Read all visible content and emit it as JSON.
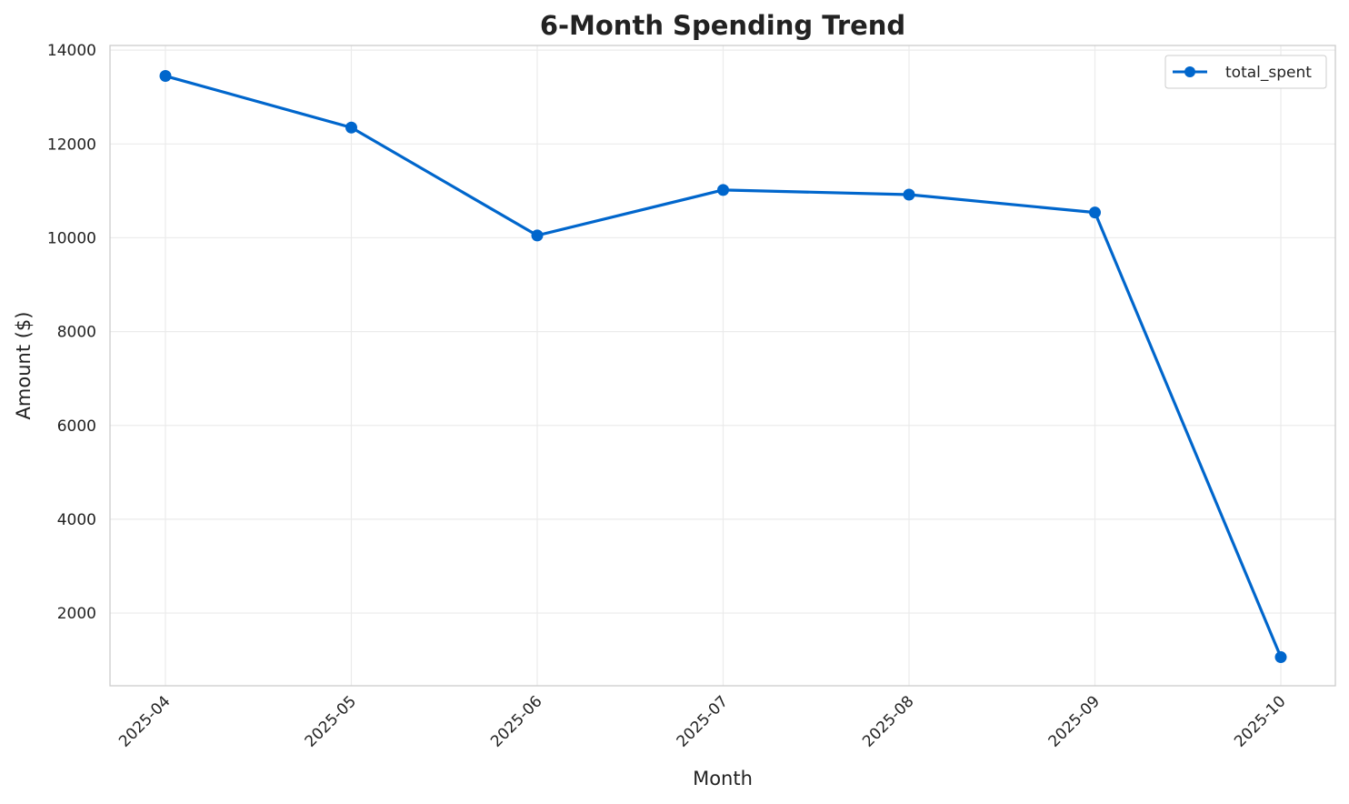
{
  "chart_data": {
    "type": "line",
    "title": "6-Month Spending Trend",
    "xlabel": "Month",
    "ylabel": "Amount ($)",
    "categories": [
      "2025-04",
      "2025-05",
      "2025-06",
      "2025-07",
      "2025-08",
      "2025-09",
      "2025-10"
    ],
    "series": [
      {
        "name": "total_spent",
        "color": "#0066cc",
        "values": [
          13450,
          12350,
          10050,
          11020,
          10920,
          10540,
          1060
        ]
      }
    ],
    "ylim": [
      450,
      14100
    ],
    "yticks": [
      2000,
      4000,
      6000,
      8000,
      10000,
      12000,
      14000
    ],
    "ytick_labels": [
      "2000",
      "4000",
      "6000",
      "8000",
      "10000",
      "12000",
      "14000"
    ],
    "grid": true,
    "legend": "top-right",
    "marker": "circle"
  }
}
